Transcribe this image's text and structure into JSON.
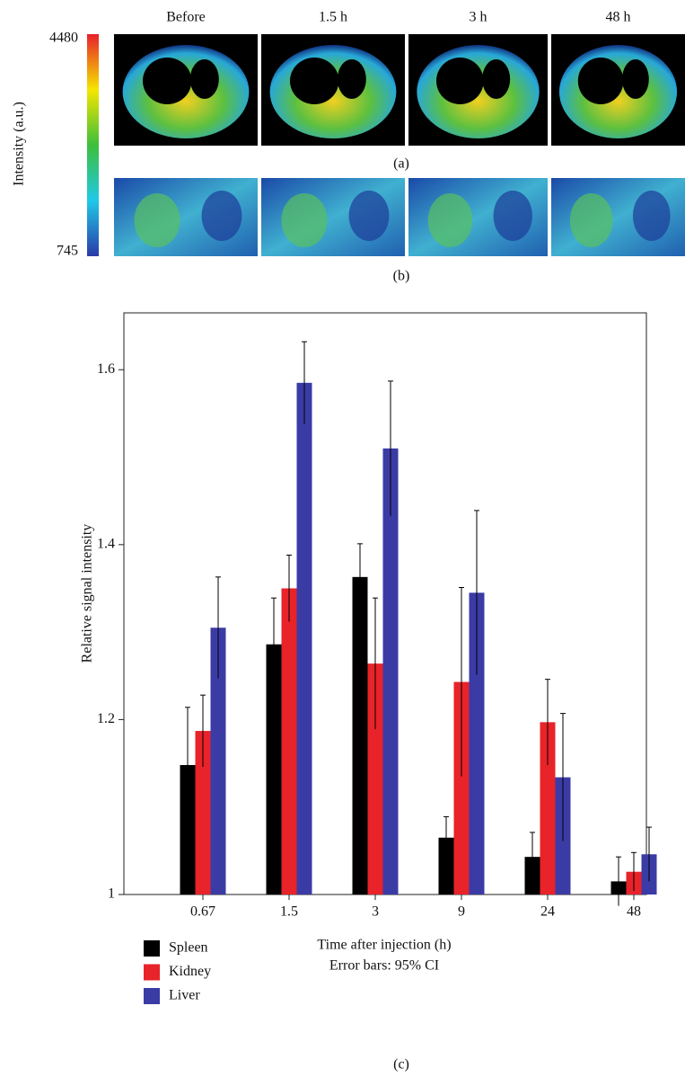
{
  "panels": {
    "colorbar": {
      "label": "Intensity (a.u.)",
      "max": 4480,
      "min": 745
    },
    "columns": [
      "Before",
      "1.5 h",
      "3 h",
      "48 h"
    ],
    "row_labels": [
      "(a)",
      "(b)"
    ]
  },
  "chart_data": {
    "type": "bar",
    "ylabel": "Relative signal intensity",
    "xlabel": "Time after injection (h)",
    "note": "Error bars: 95% CI",
    "categories": [
      "0.67",
      "1.5",
      "3",
      "9",
      "24",
      "48"
    ],
    "series": [
      {
        "name": "Spleen",
        "color": "#000000",
        "values": [
          1.148,
          1.286,
          1.363,
          1.065,
          1.043,
          1.015
        ],
        "errors": [
          0.066,
          0.053,
          0.038,
          0.024,
          0.028,
          0.028
        ]
      },
      {
        "name": "Kidney",
        "color": "#e8232a",
        "values": [
          1.187,
          1.35,
          1.264,
          1.243,
          1.197,
          1.026
        ],
        "errors": [
          0.041,
          0.038,
          0.075,
          0.108,
          0.049,
          0.022
        ]
      },
      {
        "name": "Liver",
        "color": "#3b3ba6",
        "values": [
          1.305,
          1.585,
          1.51,
          1.345,
          1.134,
          1.046
        ],
        "errors": [
          0.058,
          0.047,
          0.077,
          0.094,
          0.073,
          0.031
        ]
      }
    ],
    "ylim": [
      1,
      1.665
    ],
    "yticks": [
      1,
      1.2,
      1.4,
      1.6
    ],
    "legend": "bottom-left"
  },
  "caption": "(c)"
}
